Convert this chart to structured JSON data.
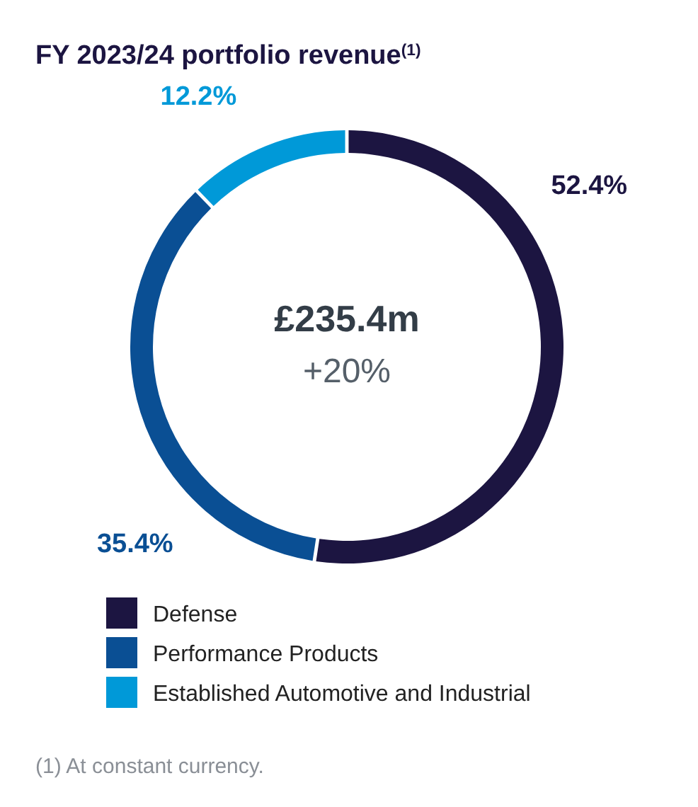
{
  "chart_data": {
    "type": "donut",
    "title": "FY 2023/24 portfolio revenue$^{(1)}$",
    "categories": [
      "Defense",
      "Performance Products",
      "Established Automotive and Industrial"
    ],
    "values": [
      52.4,
      35.4,
      12.2
    ],
    "colors": [
      "#1c1541",
      "#0a4f94",
      "#0099d8"
    ],
    "value_labels": [
      "52.4%",
      "35.4%",
      "12.2%"
    ],
    "legend": "bottom",
    "annotations": [
      "£235.4m",
      "+20%",
      "(1) At constant currency."
    ]
  }
}
